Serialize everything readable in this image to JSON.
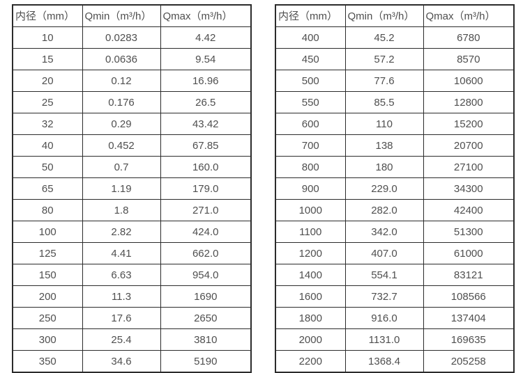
{
  "colors": {
    "background": "#ffffff",
    "border": "#2b2b2b",
    "text": "#4f4f4f"
  },
  "tables": [
    {
      "name": "flow-rate-table-small-diameters",
      "headers": [
        "内径（mm）",
        "Qmin（m³/h）",
        "Qmax（m³/h）"
      ],
      "rows": [
        [
          "10",
          "0.0283",
          "4.42"
        ],
        [
          "15",
          "0.0636",
          "9.54"
        ],
        [
          "20",
          "0.12",
          "16.96"
        ],
        [
          "25",
          "0.176",
          "26.5"
        ],
        [
          "32",
          "0.29",
          "43.42"
        ],
        [
          "40",
          "0.452",
          "67.85"
        ],
        [
          "50",
          "0.7",
          "160.0"
        ],
        [
          "65",
          "1.19",
          "179.0"
        ],
        [
          "80",
          "1.8",
          "271.0"
        ],
        [
          "100",
          "2.82",
          "424.0"
        ],
        [
          "125",
          "4.41",
          "662.0"
        ],
        [
          "150",
          "6.63",
          "954.0"
        ],
        [
          "200",
          "11.3",
          "1690"
        ],
        [
          "250",
          "17.6",
          "2650"
        ],
        [
          "300",
          "25.4",
          "3810"
        ],
        [
          "350",
          "34.6",
          "5190"
        ]
      ]
    },
    {
      "name": "flow-rate-table-large-diameters",
      "headers": [
        "内径（mm）",
        "Qmin（m³/h）",
        "Qmax（m³/h）"
      ],
      "rows": [
        [
          "400",
          "45.2",
          "6780"
        ],
        [
          "450",
          "57.2",
          "8570"
        ],
        [
          "500",
          "77.6",
          "10600"
        ],
        [
          "550",
          "85.5",
          "12800"
        ],
        [
          "600",
          "110",
          "15200"
        ],
        [
          "700",
          "138",
          "20700"
        ],
        [
          "800",
          "180",
          "27100"
        ],
        [
          "900",
          "229.0",
          "34300"
        ],
        [
          "1000",
          "282.0",
          "42400"
        ],
        [
          "1100",
          "342.0",
          "51300"
        ],
        [
          "1200",
          "407.0",
          "61000"
        ],
        [
          "1400",
          "554.1",
          "83121"
        ],
        [
          "1600",
          "732.7",
          "108566"
        ],
        [
          "1800",
          "916.0",
          "137404"
        ],
        [
          "2000",
          "1131.0",
          "169635"
        ],
        [
          "2200",
          "1368.4",
          "205258"
        ]
      ]
    }
  ]
}
